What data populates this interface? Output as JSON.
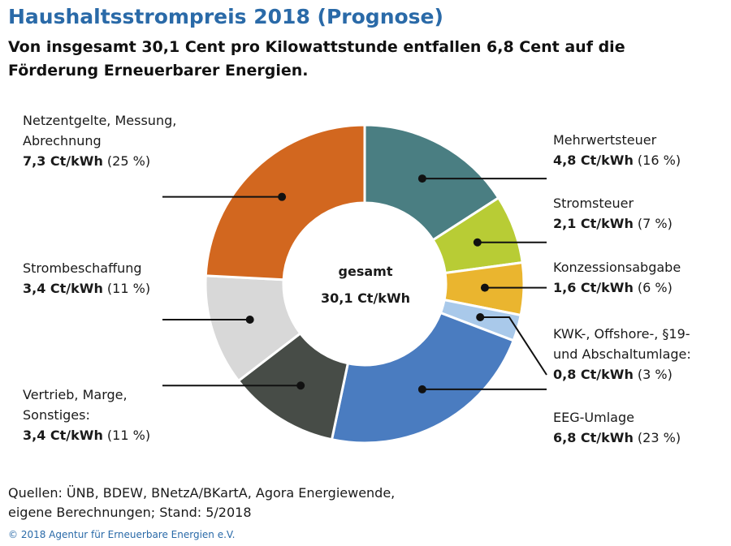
{
  "chart_data": {
    "type": "pie",
    "title": "Haushaltsstrompreis 2018 (Prognose)",
    "subtitle": "Von insgesamt 30,1 Cent pro Kilowattstunde entfallen 6,8 Cent auf die Förderung Erneuerbarer Energien.",
    "center_line1": "gesamt",
    "center_line2": "30,1 Ct/kWh",
    "total": 30.1,
    "slices": [
      {
        "name_lines": [
          "Mehrwertsteuer"
        ],
        "value": 4.8,
        "value_text": "4,8 Ct/kWh",
        "pct_text": "(16 %)",
        "color": "#4a7e82"
      },
      {
        "name_lines": [
          "Stromsteuer"
        ],
        "value": 2.1,
        "value_text": "2,1 Ct/kWh",
        "pct_text": "(7 %)",
        "color": "#b8cc35"
      },
      {
        "name_lines": [
          "Konzessionsabgabe"
        ],
        "value": 1.6,
        "value_text": "1,6 Ct/kWh",
        "pct_text": "(6 %)",
        "color": "#eab52f"
      },
      {
        "name_lines": [
          "KWK-, Offshore-, §19-",
          "und Abschaltumlage:"
        ],
        "value": 0.8,
        "value_text": "0,8 Ct/kWh",
        "pct_text": "(3 %)",
        "color": "#a9c9ea"
      },
      {
        "name_lines": [
          "EEG-Umlage"
        ],
        "value": 6.8,
        "value_text": "6,8 Ct/kWh",
        "pct_text": "(23 %)",
        "color": "#4a7cc0"
      },
      {
        "name_lines": [
          "Vertrieb, Marge,",
          "Sonstiges:"
        ],
        "value": 3.4,
        "value_text": "3,4 Ct/kWh",
        "pct_text": "(11 %)",
        "color": "#474c47"
      },
      {
        "name_lines": [
          "Strombeschaffung"
        ],
        "value": 3.4,
        "value_text": "3,4 Ct/kWh",
        "pct_text": "(11 %)",
        "color": "#d8d8d8"
      },
      {
        "name_lines": [
          "Netzentgelte, Messung,",
          "Abrechnung"
        ],
        "value": 7.3,
        "value_text": "7,3 Ct/kWh",
        "pct_text": "(25 %)",
        "color": "#d2671f"
      }
    ]
  },
  "source": {
    "line1": "Quellen: ÜNB, BDEW, BNetzA/BKartA, Agora Energiewende,",
    "line2": "eigene Berechnungen; Stand: 5/2018"
  },
  "copyright": "© 2018 Agentur für Erneuerbare Energien e.V."
}
